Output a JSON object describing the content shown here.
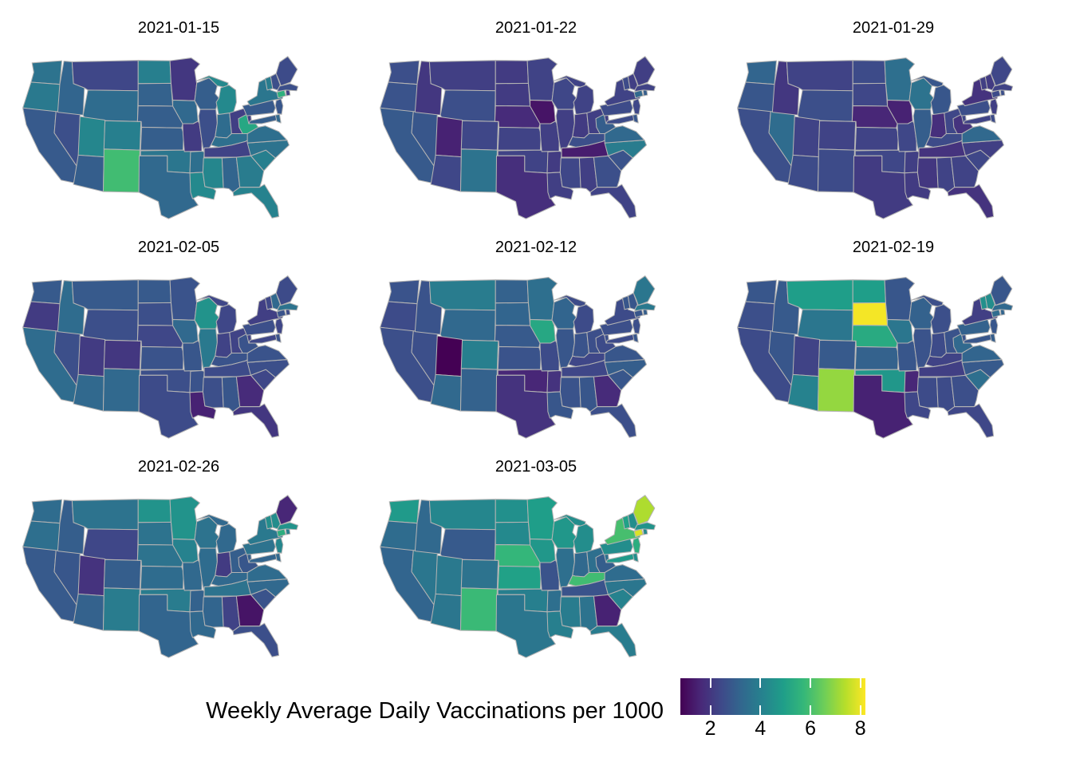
{
  "figure": {
    "background": "#ffffff",
    "state_border_color": "#b3b3b3"
  },
  "legend": {
    "title": "Weekly Average Daily Vaccinations per 1000",
    "ticks": [
      "2",
      "4",
      "6",
      "8"
    ],
    "tick_values": [
      2,
      4,
      6,
      8
    ],
    "domain": [
      0.8,
      8.2
    ],
    "colors": [
      "#440154",
      "#482878",
      "#3e4989",
      "#31688e",
      "#26828e",
      "#1f9e89",
      "#35b779",
      "#6ece58",
      "#b5de2b",
      "#fde725"
    ]
  },
  "chart_data": {
    "type": "choropleth",
    "map": "us-lower-48-states",
    "facet_variable": "week_ending_date",
    "value_label": "Weekly Average Daily Vaccinations per 1000",
    "facets": [
      {
        "date": "2021-01-15",
        "values": {
          "AL": 3.2,
          "AZ": 3.0,
          "AR": 3.5,
          "CA": 2.9,
          "CO": 4.0,
          "CT": 5.5,
          "DE": 3.3,
          "FL": 4.1,
          "GA": 3.9,
          "ID": 3.2,
          "IL": 2.6,
          "IN": 3.4,
          "IA": 3.3,
          "KS": 3.0,
          "KY": 3.5,
          "LA": 4.3,
          "ME": 2.5,
          "MD": 3.0,
          "MA": 2.6,
          "MI": 4.3,
          "MN": 2.0,
          "MS": 4.2,
          "MO": 2.1,
          "MT": 2.4,
          "NE": 3.0,
          "NV": 2.6,
          "NH": 2.6,
          "NJ": 2.8,
          "NM": 5.9,
          "NY": 3.7,
          "NC": 3.6,
          "ND": 4.0,
          "OH": 2.2,
          "OK": 3.7,
          "OR": 3.8,
          "PA": 2.9,
          "RI": 2.2,
          "SC": 4.0,
          "SD": 3.1,
          "TN": 2.3,
          "TX": 3.3,
          "UT": 4.2,
          "VT": 3.9,
          "VA": 3.5,
          "WA": 3.6,
          "WV": 5.2,
          "WI": 3.0,
          "WY": 3.4
        }
      },
      {
        "date": "2021-01-22",
        "values": {
          "AL": 2.2,
          "AZ": 2.4,
          "AR": 2.1,
          "CA": 2.9,
          "CO": 2.4,
          "CT": 3.3,
          "DE": 2.8,
          "FL": 2.3,
          "GA": 2.6,
          "ID": 2.0,
          "IL": 2.2,
          "IN": 2.1,
          "IA": 1.2,
          "KS": 2.3,
          "KY": 2.6,
          "LA": 2.2,
          "ME": 2.2,
          "MD": 2.5,
          "MA": 2.3,
          "MI": 2.3,
          "MN": 2.3,
          "MS": 2.4,
          "MO": 2.2,
          "MT": 2.2,
          "NE": 1.7,
          "NV": 2.8,
          "NH": 2.2,
          "NJ": 2.4,
          "NM": 3.6,
          "NY": 2.3,
          "NC": 3.9,
          "ND": 2.1,
          "OH": 2.2,
          "OK": 2.3,
          "OR": 2.7,
          "PA": 2.5,
          "RI": 3.0,
          "SC": 2.7,
          "SD": 2.1,
          "TN": 1.4,
          "TX": 1.8,
          "UT": 1.5,
          "VT": 2.5,
          "VA": 3.3,
          "WA": 2.6,
          "WV": 3.0,
          "WI": 2.4,
          "WY": 2.6
        }
      },
      {
        "date": "2021-01-29",
        "values": {
          "AL": 2.3,
          "AZ": 2.5,
          "AR": 2.2,
          "CA": 2.6,
          "CO": 2.3,
          "CT": 2.5,
          "DE": 2.5,
          "FL": 1.9,
          "GA": 2.3,
          "ID": 2.0,
          "IL": 3.0,
          "IN": 1.8,
          "IA": 1.5,
          "KS": 2.3,
          "KY": 2.5,
          "LA": 2.1,
          "ME": 2.4,
          "MD": 2.3,
          "MA": 2.3,
          "MI": 2.8,
          "MN": 3.5,
          "MS": 2.0,
          "MO": 2.4,
          "MT": 2.3,
          "NE": 1.6,
          "NV": 3.4,
          "NH": 2.1,
          "NJ": 2.2,
          "NM": 2.5,
          "NY": 1.9,
          "NC": 2.2,
          "ND": 2.5,
          "OH": 2.4,
          "OK": 2.4,
          "OR": 2.8,
          "PA": 2.6,
          "RI": 2.6,
          "SC": 2.4,
          "SD": 2.4,
          "TN": 1.9,
          "TX": 2.1,
          "UT": 2.3,
          "VT": 2.2,
          "VA": 3.3,
          "WA": 3.2,
          "WV": 1.9,
          "WI": 3.6,
          "WY": 2.6
        }
      },
      {
        "date": "2021-02-05",
        "values": {
          "AL": 2.8,
          "AZ": 3.3,
          "AR": 2.7,
          "CA": 3.4,
          "CO": 2.0,
          "CT": 2.7,
          "DE": 2.7,
          "FL": 2.0,
          "GA": 1.7,
          "ID": 3.4,
          "IL": 3.8,
          "IN": 2.3,
          "IA": 3.3,
          "KS": 2.7,
          "KY": 2.7,
          "LA": 1.5,
          "ME": 2.5,
          "MD": 2.4,
          "MA": 3.6,
          "MI": 2.4,
          "MN": 2.7,
          "MS": 2.6,
          "MO": 2.8,
          "MT": 2.9,
          "NE": 2.4,
          "NV": 2.6,
          "NH": 3.3,
          "NJ": 2.4,
          "NM": 3.3,
          "NY": 2.2,
          "NC": 2.6,
          "ND": 2.9,
          "OH": 2.3,
          "OK": 2.6,
          "OR": 2.1,
          "PA": 2.6,
          "RI": 2.5,
          "SC": 2.4,
          "SD": 2.6,
          "TN": 2.5,
          "TX": 2.5,
          "UT": 2.1,
          "VT": 2.4,
          "VA": 2.7,
          "WA": 2.9,
          "WV": 2.7,
          "WI": 4.6,
          "WY": 2.6
        }
      },
      {
        "date": "2021-02-12",
        "values": {
          "AL": 2.8,
          "AZ": 3.3,
          "AR": 1.9,
          "CA": 2.6,
          "CO": 4.0,
          "CT": 2.8,
          "DE": 2.8,
          "FL": 2.6,
          "GA": 1.7,
          "ID": 2.7,
          "IL": 2.8,
          "IN": 2.7,
          "IA": 5.2,
          "KS": 2.7,
          "KY": 2.4,
          "LA": 2.8,
          "ME": 3.7,
          "MD": 2.5,
          "MA": 3.8,
          "MI": 2.5,
          "MN": 3.5,
          "MS": 2.7,
          "MO": 2.5,
          "MT": 3.9,
          "NE": 2.9,
          "NV": 2.6,
          "NH": 2.8,
          "NJ": 2.6,
          "NM": 3.1,
          "NY": 2.5,
          "NC": 3.0,
          "ND": 3.1,
          "OH": 2.6,
          "OK": 1.6,
          "OR": 2.5,
          "PA": 2.6,
          "RI": 3.0,
          "SC": 2.8,
          "SD": 3.2,
          "TN": 2.4,
          "TX": 1.9,
          "UT": 0.8,
          "VT": 2.8,
          "VA": 2.8,
          "WA": 2.7,
          "WV": 2.5,
          "WI": 3.2,
          "WY": 3.3
        }
      },
      {
        "date": "2021-02-19",
        "values": {
          "AL": 2.5,
          "AZ": 4.1,
          "AR": 1.6,
          "CA": 2.5,
          "CO": 2.9,
          "CT": 3.4,
          "DE": 3.0,
          "FL": 2.4,
          "GA": 2.6,
          "ID": 2.9,
          "IL": 2.7,
          "IN": 2.5,
          "IA": 3.7,
          "KS": 3.1,
          "KY": 2.3,
          "LA": 2.4,
          "ME": 2.8,
          "MD": 2.8,
          "MA": 3.3,
          "MI": 2.6,
          "MN": 2.8,
          "MS": 2.5,
          "MO": 2.8,
          "MT": 4.9,
          "NE": 5.3,
          "NV": 2.8,
          "NH": 4.4,
          "NJ": 2.8,
          "NM": 7.0,
          "NY": 2.2,
          "NC": 2.9,
          "ND": 4.9,
          "OH": 2.7,
          "OK": 4.7,
          "OR": 2.6,
          "PA": 3.1,
          "RI": 3.2,
          "SC": 3.5,
          "SD": 8.1,
          "TN": 2.2,
          "TX": 1.5,
          "UT": 2.3,
          "VT": 4.5,
          "VA": 3.2,
          "WA": 2.8,
          "WV": 3.3,
          "WI": 3.1,
          "WY": 3.7
        }
      },
      {
        "date": "2021-02-26",
        "values": {
          "AL": 2.3,
          "AZ": 3.1,
          "AR": 3.1,
          "CA": 2.9,
          "CO": 3.0,
          "CT": 5.4,
          "DE": 3.3,
          "FL": 2.6,
          "GA": 1.2,
          "ID": 3.0,
          "IL": 3.4,
          "IN": 2.1,
          "IA": 4.1,
          "KS": 3.4,
          "KY": 3.3,
          "LA": 3.3,
          "ME": 1.6,
          "MD": 3.2,
          "MA": 4.6,
          "MI": 3.3,
          "MN": 4.6,
          "MS": 3.2,
          "MO": 3.3,
          "MT": 3.6,
          "NE": 3.6,
          "NV": 2.8,
          "NH": 4.4,
          "NJ": 4.2,
          "NM": 3.9,
          "NY": 3.8,
          "NC": 3.3,
          "ND": 4.6,
          "OH": 3.0,
          "OK": 3.9,
          "OR": 3.5,
          "PA": 3.6,
          "RI": 4.0,
          "SC": 2.7,
          "SD": 3.6,
          "TN": 3.6,
          "TX": 3.2,
          "UT": 1.9,
          "VT": 4.4,
          "VA": 3.4,
          "WA": 3.4,
          "WV": 2.8,
          "WI": 3.6,
          "WY": 2.4
        }
      },
      {
        "date": "2021-03-05",
        "values": {
          "AL": 3.6,
          "AZ": 3.7,
          "AR": 3.5,
          "CA": 3.2,
          "CO": 3.6,
          "CT": 7.8,
          "DE": 4.4,
          "FL": 3.9,
          "GA": 1.5,
          "ID": 3.3,
          "IL": 3.5,
          "IN": 3.3,
          "IA": 4.7,
          "KS": 5.0,
          "KY": 5.9,
          "LA": 4.0,
          "ME": 7.3,
          "MD": 4.8,
          "MA": 4.6,
          "MI": 4.4,
          "MN": 4.9,
          "MS": 3.9,
          "MO": 2.7,
          "MT": 4.2,
          "NE": 5.7,
          "NV": 3.7,
          "NH": 4.4,
          "NJ": 5.4,
          "NM": 5.8,
          "NY": 6.0,
          "NC": 3.7,
          "ND": 4.5,
          "OH": 3.5,
          "OK": 4.0,
          "OR": 3.4,
          "PA": 4.4,
          "RI": 4.3,
          "SC": 4.1,
          "SD": 4.3,
          "TN": 2.7,
          "TX": 3.7,
          "UT": 3.8,
          "VT": 5.0,
          "VA": 3.4,
          "WA": 4.8,
          "WV": 3.0,
          "WI": 4.7,
          "WY": 2.9
        }
      }
    ]
  }
}
